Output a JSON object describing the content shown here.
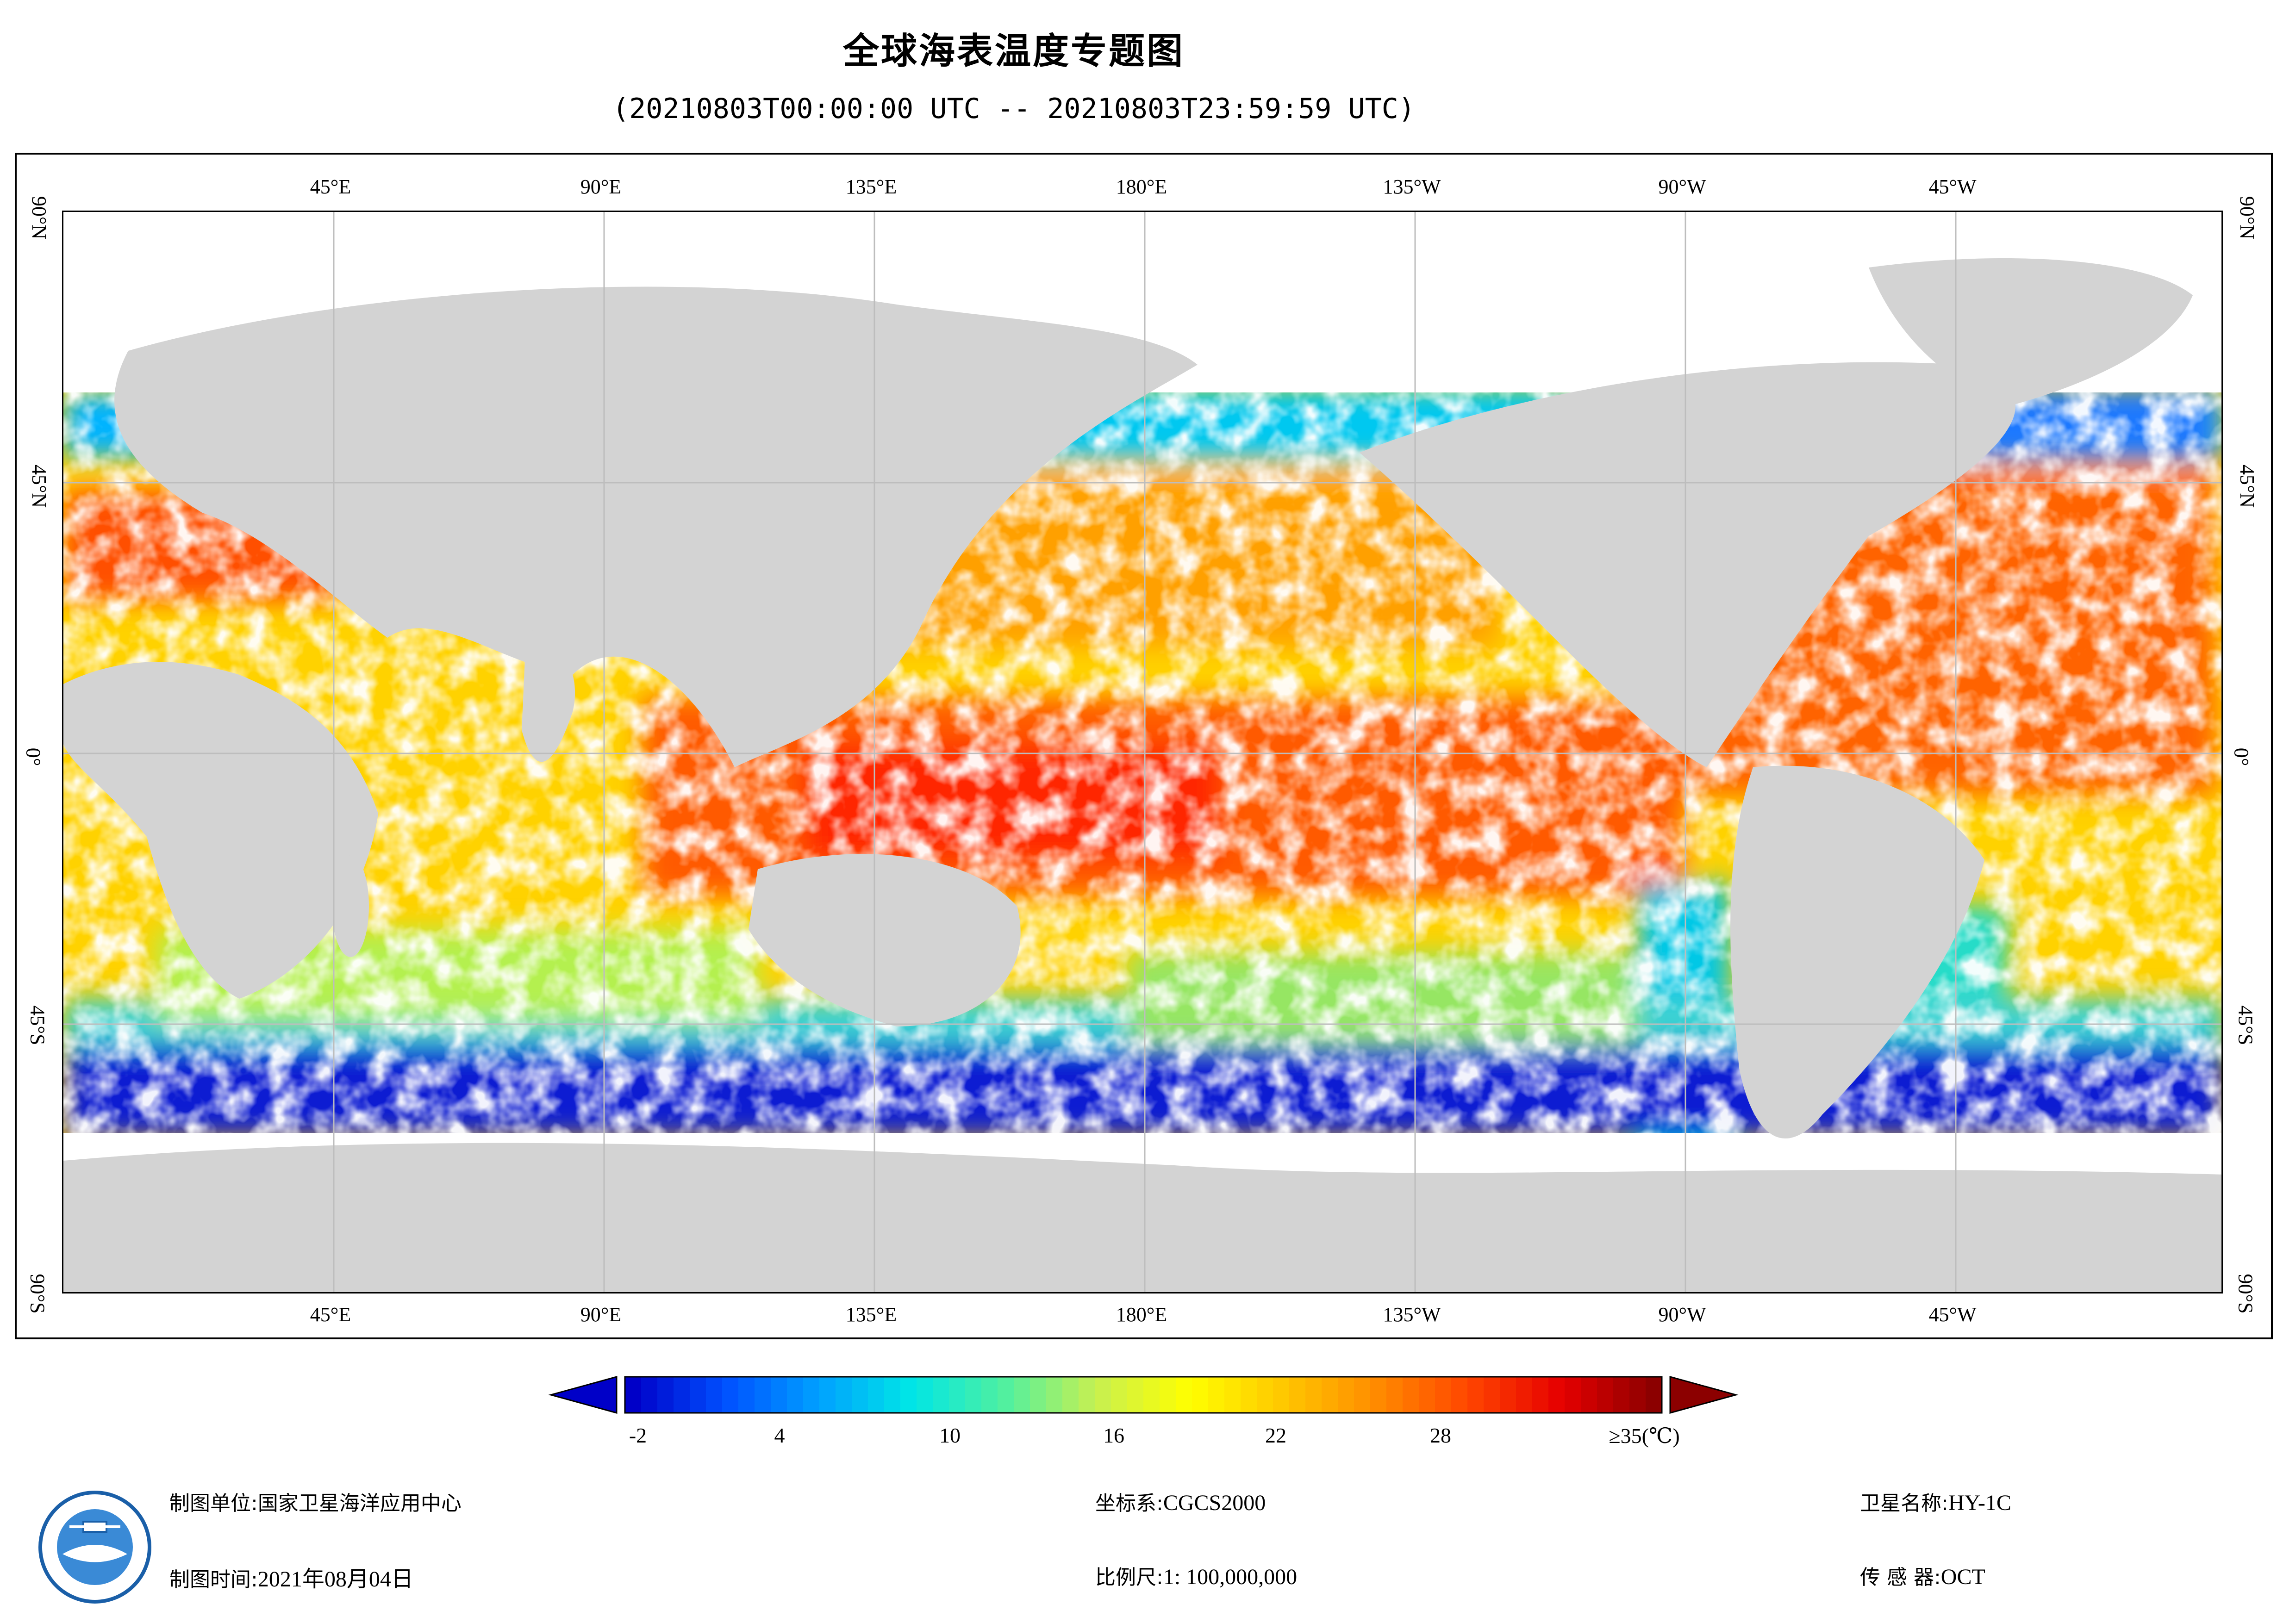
{
  "title": "全球海表温度专题图",
  "subtitle": "(20210803T00:00:00 UTC -- 20210803T23:59:59 UTC)",
  "map": {
    "longitude_labels": [
      "45°E",
      "90°E",
      "135°E",
      "180°E",
      "135°W",
      "90°W",
      "45°W"
    ],
    "latitude_labels": [
      "90°N",
      "45°N",
      "0°",
      "45°S",
      "90°S"
    ],
    "land_color": "#d3d3d3",
    "ocean_no_data_color": "#ffffff"
  },
  "colorbar": {
    "tick_labels": [
      "-2",
      "4",
      "10",
      "16",
      "22",
      "28",
      "≥35(℃)"
    ],
    "colors": [
      "#0000c8",
      "#0050ff",
      "#00a0ff",
      "#00e6e6",
      "#50f0a0",
      "#c8f050",
      "#ffff00",
      "#ffc800",
      "#ff8c00",
      "#ff4600",
      "#e60000",
      "#8c0000"
    ]
  },
  "footer": {
    "unit_label": "制图单位:",
    "unit_value": "国家卫星海洋应用中心",
    "time_label": "制图时间:",
    "time_value": "2021年08月04日",
    "coord_label": "坐标系:",
    "coord_value": "CGCS2000",
    "scale_label": "比例尺:",
    "scale_value": "1: 100,000,000",
    "sat_label": "卫星名称:",
    "sat_value": "HY-1C",
    "sensor_label": "传 感 器:",
    "sensor_value": "OCT"
  }
}
